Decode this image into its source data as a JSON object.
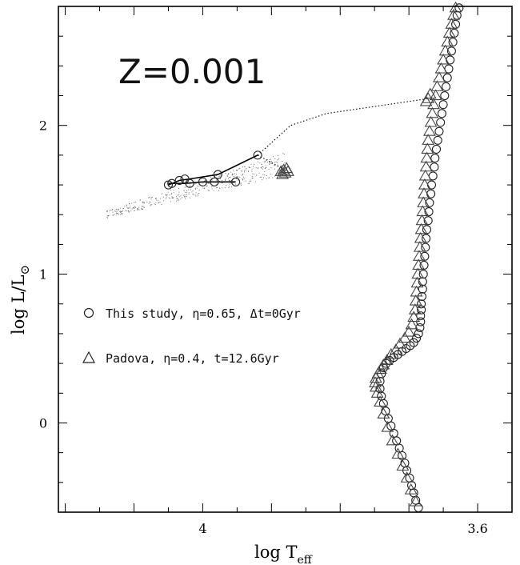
{
  "chart_data": {
    "type": "scatter",
    "annotation": "Z=0.001",
    "xlabel": "log T",
    "xlabel_sub": "eff",
    "ylabel": "log L/L",
    "ylabel_sub": "⊙",
    "xlim": [
      4.21,
      3.55
    ],
    "ylim": [
      -0.6,
      2.8
    ],
    "xticks_major": [
      4.0,
      3.6
    ],
    "xtick_labels": [
      "4",
      "3.6"
    ],
    "yticks_major": [
      0,
      1,
      2
    ],
    "ytick_labels": [
      "0",
      "1",
      "2"
    ],
    "legend": {
      "placement": "middle-left",
      "entries": [
        {
          "marker": "circle",
          "label": "This study, η=0.65, Δt=0Gyr"
        },
        {
          "marker": "triangle",
          "label": "Padova, η=0.4, t=12.6Gyr"
        }
      ]
    },
    "series": [
      {
        "name": "This study, η=0.65, Δt=0Gyr",
        "marker": "circle",
        "points": [
          [
            3.686,
            -0.57
          ],
          [
            3.69,
            -0.52
          ],
          [
            3.693,
            -0.47
          ],
          [
            3.696,
            -0.42
          ],
          [
            3.699,
            -0.37
          ],
          [
            3.703,
            -0.32
          ],
          [
            3.706,
            -0.27
          ],
          [
            3.71,
            -0.22
          ],
          [
            3.714,
            -0.17
          ],
          [
            3.718,
            -0.12
          ],
          [
            3.722,
            -0.07
          ],
          [
            3.726,
            -0.02
          ],
          [
            3.73,
            0.03
          ],
          [
            3.734,
            0.08
          ],
          [
            3.737,
            0.13
          ],
          [
            3.74,
            0.18
          ],
          [
            3.742,
            0.23
          ],
          [
            3.742,
            0.28
          ],
          [
            3.74,
            0.33
          ],
          [
            3.737,
            0.37
          ],
          [
            3.733,
            0.4
          ],
          [
            3.728,
            0.42
          ],
          [
            3.722,
            0.44
          ],
          [
            3.716,
            0.46
          ],
          [
            3.71,
            0.48
          ],
          [
            3.704,
            0.5
          ],
          [
            3.698,
            0.52
          ],
          [
            3.693,
            0.54
          ],
          [
            3.689,
            0.57
          ],
          [
            3.686,
            0.6
          ],
          [
            3.684,
            0.64
          ],
          [
            3.683,
            0.68
          ],
          [
            3.683,
            0.72
          ],
          [
            3.682,
            0.76
          ],
          [
            3.682,
            0.8
          ],
          [
            3.681,
            0.85
          ],
          [
            3.68,
            0.9
          ],
          [
            3.68,
            0.95
          ],
          [
            3.679,
            1.0
          ],
          [
            3.678,
            1.06
          ],
          [
            3.677,
            1.12
          ],
          [
            3.676,
            1.18
          ],
          [
            3.675,
            1.24
          ],
          [
            3.674,
            1.3
          ],
          [
            3.672,
            1.36
          ],
          [
            3.671,
            1.42
          ],
          [
            3.67,
            1.48
          ],
          [
            3.668,
            1.54
          ],
          [
            3.667,
            1.6
          ],
          [
            3.665,
            1.66
          ],
          [
            3.663,
            1.72
          ],
          [
            3.662,
            1.78
          ],
          [
            3.66,
            1.84
          ],
          [
            3.658,
            1.9
          ],
          [
            3.656,
            1.96
          ],
          [
            3.654,
            2.02
          ],
          [
            3.652,
            2.08
          ],
          [
            3.65,
            2.14
          ],
          [
            3.648,
            2.2
          ],
          [
            3.646,
            2.26
          ],
          [
            3.644,
            2.32
          ],
          [
            3.642,
            2.38
          ],
          [
            3.64,
            2.44
          ],
          [
            3.638,
            2.5
          ],
          [
            3.636,
            2.56
          ],
          [
            3.634,
            2.62
          ],
          [
            3.632,
            2.68
          ],
          [
            3.63,
            2.74
          ],
          [
            3.627,
            2.79
          ],
          [
            3.92,
            1.8
          ],
          [
            3.978,
            1.67
          ],
          [
            4.0,
            1.62
          ],
          [
            4.019,
            1.61
          ],
          [
            4.034,
            1.63
          ],
          [
            4.045,
            1.61
          ],
          [
            4.05,
            1.6
          ],
          [
            4.026,
            1.64
          ],
          [
            3.983,
            1.62
          ],
          [
            3.952,
            1.62
          ]
        ]
      },
      {
        "name": "Padova, η=0.4, t=12.6Gyr",
        "marker": "triangle",
        "points": [
          [
            3.69,
            -0.53
          ],
          [
            3.697,
            -0.45
          ],
          [
            3.703,
            -0.37
          ],
          [
            3.709,
            -0.29
          ],
          [
            3.716,
            -0.21
          ],
          [
            3.724,
            -0.12
          ],
          [
            3.731,
            -0.03
          ],
          [
            3.737,
            0.06
          ],
          [
            3.742,
            0.14
          ],
          [
            3.746,
            0.2
          ],
          [
            3.748,
            0.24
          ],
          [
            3.749,
            0.27
          ],
          [
            3.748,
            0.3
          ],
          [
            3.745,
            0.33
          ],
          [
            3.741,
            0.36
          ],
          [
            3.737,
            0.39
          ],
          [
            3.732,
            0.42
          ],
          [
            3.726,
            0.46
          ],
          [
            3.719,
            0.49
          ],
          [
            3.713,
            0.53
          ],
          [
            3.706,
            0.57
          ],
          [
            3.7,
            0.61
          ],
          [
            3.696,
            0.66
          ],
          [
            3.693,
            0.71
          ],
          [
            3.691,
            0.76
          ],
          [
            3.69,
            0.82
          ],
          [
            3.689,
            0.88
          ],
          [
            3.688,
            0.94
          ],
          [
            3.687,
            1.0
          ],
          [
            3.686,
            1.06
          ],
          [
            3.685,
            1.12
          ],
          [
            3.684,
            1.18
          ],
          [
            3.683,
            1.24
          ],
          [
            3.682,
            1.3
          ],
          [
            3.681,
            1.36
          ],
          [
            3.68,
            1.42
          ],
          [
            3.679,
            1.48
          ],
          [
            3.678,
            1.54
          ],
          [
            3.677,
            1.6
          ],
          [
            3.676,
            1.66
          ],
          [
            3.675,
            1.72
          ],
          [
            3.674,
            1.78
          ],
          [
            3.673,
            1.84
          ],
          [
            3.672,
            1.9
          ],
          [
            3.67,
            1.96
          ],
          [
            3.668,
            2.02
          ],
          [
            3.666,
            2.08
          ],
          [
            3.664,
            2.14
          ],
          [
            3.661,
            2.2
          ],
          [
            3.659,
            2.26
          ],
          [
            3.656,
            2.32
          ],
          [
            3.653,
            2.38
          ],
          [
            3.65,
            2.44
          ],
          [
            3.647,
            2.5
          ],
          [
            3.644,
            2.56
          ],
          [
            3.641,
            2.62
          ],
          [
            3.638,
            2.68
          ],
          [
            3.635,
            2.74
          ],
          [
            3.632,
            2.79
          ],
          [
            3.884,
            1.67
          ],
          [
            3.88,
            1.68
          ],
          [
            3.876,
            1.69
          ],
          [
            3.882,
            1.7
          ],
          [
            3.878,
            1.71
          ],
          [
            3.886,
            1.69
          ],
          [
            3.672,
            2.18
          ],
          [
            3.669,
            2.21
          ],
          [
            3.675,
            2.16
          ]
        ]
      }
    ],
    "lines": [
      {
        "style": "solid",
        "points": [
          [
            4.05,
            1.6
          ],
          [
            4.034,
            1.63
          ],
          [
            4.019,
            1.64
          ],
          [
            3.978,
            1.67
          ],
          [
            3.92,
            1.8
          ]
        ]
      },
      {
        "style": "solid",
        "points": [
          [
            4.05,
            1.61
          ],
          [
            4.026,
            1.61
          ],
          [
            4.0,
            1.62
          ],
          [
            3.983,
            1.62
          ],
          [
            3.952,
            1.62
          ]
        ]
      },
      {
        "style": "dotted",
        "points": [
          [
            3.92,
            1.8
          ],
          [
            3.872,
            2.0
          ],
          [
            3.82,
            2.08
          ],
          [
            3.672,
            2.18
          ]
        ]
      },
      {
        "style": "dotted",
        "points": [
          [
            3.92,
            1.8
          ],
          [
            3.88,
            1.7
          ]
        ]
      }
    ]
  }
}
